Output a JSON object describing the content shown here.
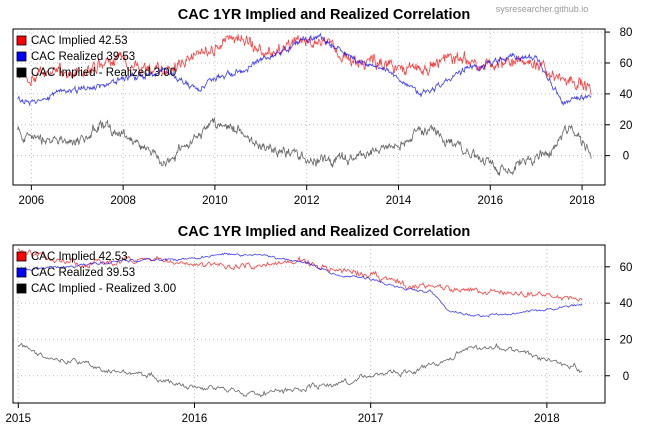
{
  "watermark": "sysresearcher.github.io",
  "colors": {
    "implied": "#ff0000",
    "realized": "#0000ff",
    "spread": "#000000",
    "grid": "#bdbdbd"
  },
  "chart_data": [
    {
      "type": "line",
      "title": "CAC 1YR Implied and Realized Correlation",
      "xlim": [
        2005.6,
        2018.5
      ],
      "ylim": [
        -19,
        82
      ],
      "x_ticks": [
        "2006",
        "2008",
        "2010",
        "2012",
        "2014",
        "2016",
        "2018"
      ],
      "y_ticks": [
        "0",
        "20",
        "40",
        "60",
        "80"
      ],
      "grid": true,
      "legend_position": "top-left",
      "legend": [
        "CAC Implied 42.53",
        "CAC Realized 39.53",
        "CAC Implied - Realized  3.00"
      ],
      "series": [
        {
          "name": "CAC Implied",
          "x": [
            2005.7,
            2006.0,
            2006.5,
            2007.0,
            2007.5,
            2008.0,
            2008.5,
            2009.0,
            2009.5,
            2010.0,
            2010.3,
            2010.8,
            2011.2,
            2011.6,
            2011.9,
            2012.3,
            2012.6,
            2013.0,
            2013.5,
            2014.0,
            2014.5,
            2015.0,
            2015.5,
            2016.0,
            2016.5,
            2017.0,
            2017.5,
            2017.9,
            2018.2
          ],
          "y": [
            52,
            48,
            55,
            52,
            58,
            62,
            57,
            54,
            65,
            70,
            77,
            72,
            66,
            72,
            75,
            74,
            68,
            61,
            60,
            57,
            55,
            62,
            63,
            58,
            62,
            60,
            52,
            48,
            43
          ]
        },
        {
          "name": "CAC Realized",
          "x": [
            2005.7,
            2006.0,
            2006.5,
            2007.0,
            2007.5,
            2008.0,
            2008.5,
            2008.9,
            2009.3,
            2009.6,
            2010.0,
            2010.5,
            2011.0,
            2011.5,
            2011.9,
            2012.3,
            2012.7,
            2013.0,
            2013.5,
            2014.0,
            2014.5,
            2015.0,
            2015.5,
            2016.0,
            2016.5,
            2017.0,
            2017.3,
            2017.6,
            2018.0,
            2018.2
          ],
          "y": [
            36,
            35,
            40,
            42,
            45,
            50,
            52,
            55,
            48,
            42,
            50,
            55,
            62,
            68,
            75,
            77,
            70,
            62,
            58,
            50,
            40,
            48,
            56,
            60,
            64,
            63,
            48,
            34,
            36,
            39
          ]
        },
        {
          "name": "CAC Implied - Realized",
          "x": [
            2005.7,
            2006.0,
            2006.5,
            2007.0,
            2007.3,
            2007.6,
            2008.0,
            2008.5,
            2008.9,
            2009.3,
            2009.7,
            2010.0,
            2010.5,
            2011.0,
            2011.5,
            2012.0,
            2012.5,
            2013.0,
            2013.5,
            2014.0,
            2014.4,
            2014.8,
            2015.3,
            2015.8,
            2016.2,
            2016.6,
            2017.0,
            2017.3,
            2017.6,
            2017.8,
            2018.2
          ],
          "y": [
            16,
            12,
            8,
            10,
            14,
            22,
            12,
            5,
            -5,
            5,
            15,
            20,
            17,
            6,
            3,
            -2,
            -4,
            -2,
            2,
            7,
            15,
            17,
            6,
            -2,
            -10,
            -5,
            -1,
            2,
            15,
            18,
            3
          ]
        }
      ]
    },
    {
      "type": "line",
      "title": "CAC 1YR Implied and Realized Correlation",
      "xlim": [
        2014.97,
        2018.33
      ],
      "ylim": [
        -15,
        72
      ],
      "x_ticks": [
        "2015",
        "2016",
        "2017",
        "2018"
      ],
      "y_ticks": [
        "0",
        "20",
        "40",
        "60"
      ],
      "grid": true,
      "legend_position": "top-left",
      "legend": [
        "CAC Implied 42.53",
        "CAC Realized 39.53",
        "CAC Implied - Realized  3.00"
      ],
      "series": [
        {
          "name": "CAC Implied",
          "x": [
            2015.0,
            2015.2,
            2015.4,
            2015.6,
            2015.8,
            2016.0,
            2016.2,
            2016.4,
            2016.6,
            2016.8,
            2017.0,
            2017.2,
            2017.4,
            2017.6,
            2017.8,
            2018.0,
            2018.2
          ],
          "y": [
            70,
            64,
            62,
            63,
            64,
            62,
            60,
            62,
            63,
            58,
            55,
            50,
            48,
            47,
            46,
            44,
            43
          ]
        },
        {
          "name": "CAC Realized",
          "x": [
            2015.0,
            2015.2,
            2015.4,
            2015.6,
            2015.8,
            2016.0,
            2016.2,
            2016.4,
            2016.6,
            2016.8,
            2017.0,
            2017.2,
            2017.35,
            2017.45,
            2017.6,
            2017.8,
            2018.0,
            2018.2
          ],
          "y": [
            58,
            60,
            61,
            63,
            64,
            65,
            67,
            66,
            63,
            56,
            53,
            48,
            46,
            35,
            33,
            34,
            37,
            39
          ]
        },
        {
          "name": "CAC Implied - Realized",
          "x": [
            2015.0,
            2015.15,
            2015.3,
            2015.5,
            2015.7,
            2015.9,
            2016.1,
            2016.3,
            2016.5,
            2016.7,
            2016.9,
            2017.0,
            2017.2,
            2017.4,
            2017.55,
            2017.7,
            2017.9,
            2018.05,
            2018.2
          ],
          "y": [
            17,
            10,
            8,
            3,
            1,
            -5,
            -7,
            -10,
            -8,
            -5,
            -3,
            0,
            2,
            8,
            14,
            16,
            12,
            8,
            3
          ]
        }
      ]
    }
  ]
}
